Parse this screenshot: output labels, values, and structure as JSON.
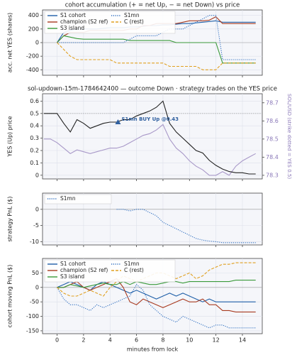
{
  "chart_data": [
    {
      "type": "line",
      "title": "cohort accumulation (+ = net Up, − = net Down) vs price",
      "ylabel": "acc. net YES (shares)",
      "xlim": [
        -1.1,
        15.5
      ],
      "xticks": [
        0,
        2,
        4,
        6,
        8,
        10,
        12,
        14
      ],
      "ylim": [
        -480,
        480
      ],
      "yticks": [
        -400,
        -200,
        0,
        200,
        400
      ],
      "grid": true,
      "legend": "upper left",
      "zero_line": true,
      "x": [
        0,
        0.5,
        1,
        1.5,
        2,
        2.5,
        3,
        3.5,
        4,
        4.5,
        5,
        5.5,
        6,
        6.5,
        7,
        7.5,
        8,
        8.5,
        9,
        9.5,
        10,
        10.5,
        11,
        11.5,
        12,
        12.5,
        13,
        13.5,
        14,
        14.5,
        15
      ],
      "series": [
        {
          "name": "S1 cohort",
          "color": "#1f5fa8",
          "linestyle": "solid",
          "values": [
            0,
            150,
            180,
            200,
            200,
            200,
            200,
            210,
            220,
            220,
            220,
            230,
            230,
            240,
            250,
            250,
            260,
            260,
            270,
            280,
            280,
            290,
            300,
            310,
            320,
            300,
            300,
            300,
            300,
            300,
            300
          ]
        },
        {
          "name": "champion (S2 ref)",
          "color": "#a83a1f",
          "linestyle": "solid",
          "values": [
            0,
            100,
            150,
            150,
            150,
            180,
            180,
            180,
            180,
            180,
            180,
            200,
            200,
            250,
            250,
            280,
            280,
            280,
            280,
            300,
            320,
            320,
            320,
            330,
            380,
            280,
            280,
            280,
            280,
            280,
            280
          ]
        },
        {
          "name": "S3 island",
          "color": "#3a9a3a",
          "linestyle": "solid",
          "values": [
            0,
            100,
            80,
            60,
            50,
            50,
            50,
            50,
            50,
            50,
            50,
            30,
            30,
            30,
            30,
            30,
            30,
            30,
            0,
            0,
            0,
            0,
            0,
            0,
            0,
            -300,
            -300,
            -300,
            -300,
            -300,
            -300
          ]
        },
        {
          "name": "S1mn",
          "color": "#2f6fc0",
          "linestyle": "dotted",
          "values": [
            0,
            0,
            0,
            0,
            0,
            0,
            0,
            0,
            0,
            0,
            0,
            50,
            100,
            100,
            100,
            100,
            150,
            200,
            200,
            200,
            250,
            300,
            350,
            400,
            400,
            -250,
            -250,
            -250,
            -250,
            -250,
            -250
          ]
        },
        {
          "name": "C (rest)",
          "color": "#e0a020",
          "linestyle": "dashed",
          "values": [
            0,
            -100,
            -200,
            -250,
            -250,
            -250,
            -250,
            -250,
            -250,
            -300,
            -300,
            -300,
            -300,
            -300,
            -300,
            -300,
            -300,
            -350,
            -350,
            -350,
            -350,
            -350,
            -400,
            -400,
            -400,
            -300,
            -300,
            -300,
            -300,
            -300,
            -300
          ]
        }
      ]
    },
    {
      "type": "line",
      "title": "sol-updown-15m-1784642400 — outcome Down · strategy trades on the YES price",
      "ylabel": "YES (Up) price",
      "y2label": "SOL/USD (strike dotted = YES 0.5)",
      "xlim": [
        -1.1,
        15.5
      ],
      "xticks": [
        0,
        2,
        4,
        6,
        8,
        10,
        12,
        14
      ],
      "ylim": [
        -0.03,
        0.66
      ],
      "yticks": [
        0.0,
        0.1,
        0.2,
        0.3,
        0.4,
        0.5,
        0.6
      ],
      "y2lim": [
        78.28,
        78.75
      ],
      "y2ticks": [
        78.3,
        78.4,
        78.5,
        78.6,
        78.7
      ],
      "grid": true,
      "strike": 0.5,
      "x": [
        -1,
        -0.5,
        0,
        0.5,
        1,
        1.5,
        2,
        2.5,
        3,
        3.5,
        4,
        4.5,
        5,
        5.5,
        6,
        6.5,
        7,
        7.5,
        8,
        8.5,
        9,
        9.5,
        10,
        10.5,
        11,
        11.5,
        12,
        12.5,
        13,
        13.5,
        14,
        14.5,
        15
      ],
      "series": [
        {
          "name": "SOL/USD",
          "color": "#a898c8",
          "linestyle": "solid",
          "axis": "y2",
          "values": [
            78.5,
            78.5,
            78.48,
            78.45,
            78.42,
            78.44,
            78.43,
            78.42,
            78.43,
            78.44,
            78.45,
            78.45,
            78.46,
            78.48,
            78.5,
            78.52,
            78.53,
            78.55,
            78.58,
            78.5,
            78.45,
            78.42,
            78.38,
            78.35,
            78.33,
            78.3,
            78.3,
            78.32,
            78.3,
            78.35,
            78.38,
            78.4,
            78.42
          ]
        },
        {
          "name": "YES price",
          "color": "#222222",
          "linestyle": "solid",
          "values": [
            0.5,
            0.5,
            0.5,
            0.42,
            0.35,
            0.45,
            0.42,
            0.38,
            0.4,
            0.42,
            0.43,
            0.43,
            0.45,
            0.45,
            0.48,
            0.5,
            0.52,
            0.55,
            0.6,
            0.42,
            0.35,
            0.3,
            0.25,
            0.2,
            0.18,
            0.12,
            0.08,
            0.05,
            0.03,
            0.02,
            0.02,
            0.01,
            0.01
          ]
        }
      ],
      "trades": [
        {
          "x": 4.6,
          "y": 0.43,
          "label": "S1mn BUY Up @0.43",
          "color": "#2f5f9f"
        }
      ]
    },
    {
      "type": "line",
      "ylabel": "strategy PnL ($)",
      "xlim": [
        -1.1,
        15.5
      ],
      "xticks": [
        0,
        2,
        4,
        6,
        8,
        10,
        12,
        14
      ],
      "ylim": [
        -11,
        5
      ],
      "yticks": [
        0,
        -5,
        -10
      ],
      "grid": true,
      "legend": "upper left",
      "zero_line": true,
      "x": [
        4.5,
        5,
        5.5,
        6,
        6.5,
        7,
        7.5,
        8,
        8.5,
        9,
        9.5,
        10,
        10.5,
        11,
        11.5,
        12,
        12.5,
        13,
        13.5,
        14,
        14.5,
        15
      ],
      "series": [
        {
          "name": "S1mn",
          "color": "#2f6fc0",
          "linestyle": "dotted",
          "values": [
            0,
            0,
            -0.5,
            0,
            0,
            -1,
            -2,
            -4,
            -5,
            -6,
            -7,
            -8,
            -9,
            -9.5,
            -9.8,
            -10,
            -10.3,
            -10.3,
            -10.3,
            -10.3,
            -10.3,
            -10.3
          ]
        }
      ]
    },
    {
      "type": "line",
      "ylabel": "cohort moving PnL ($)",
      "xlabel": "minutes from lock",
      "xlim": [
        -1.1,
        15.5
      ],
      "xticks": [
        0,
        2,
        4,
        6,
        8,
        10,
        12,
        14
      ],
      "xtick_labels": true,
      "ylim": [
        -160,
        100
      ],
      "yticks": [
        50,
        0,
        -50,
        -100,
        -150
      ],
      "grid": true,
      "legend": "upper left",
      "zero_line": true,
      "x": [
        0,
        0.5,
        1,
        1.5,
        2,
        2.5,
        3,
        3.5,
        4,
        4.5,
        5,
        5.5,
        6,
        6.5,
        7,
        7.5,
        8,
        8.5,
        9,
        9.5,
        10,
        10.5,
        11,
        11.5,
        12,
        12.5,
        13,
        13.5,
        14,
        14.5,
        15
      ],
      "series": [
        {
          "name": "S1 cohort",
          "color": "#1f5fa8",
          "linestyle": "solid",
          "values": [
            0,
            10,
            20,
            10,
            0,
            -10,
            10,
            20,
            10,
            0,
            -10,
            -20,
            -10,
            -20,
            -30,
            -40,
            -30,
            -20,
            -30,
            -20,
            -30,
            -40,
            -50,
            -40,
            -50,
            -50,
            -50,
            -50,
            -50,
            -50,
            -50
          ]
        },
        {
          "name": "champion (S2 ref)",
          "color": "#a83a1f",
          "linestyle": "solid",
          "values": [
            0,
            0,
            10,
            20,
            0,
            -10,
            0,
            10,
            20,
            30,
            0,
            -50,
            -60,
            -40,
            -50,
            -60,
            -70,
            -60,
            -50,
            -40,
            -50,
            -50,
            -40,
            -60,
            -60,
            -80,
            -80,
            -85,
            -85,
            -85,
            -85
          ]
        },
        {
          "name": "S3 island",
          "color": "#3a9a3a",
          "linestyle": "solid",
          "values": [
            0,
            0,
            10,
            5,
            0,
            5,
            10,
            15,
            10,
            10,
            20,
            10,
            20,
            15,
            10,
            10,
            15,
            20,
            20,
            15,
            20,
            20,
            20,
            20,
            20,
            20,
            20,
            25,
            25,
            25,
            25
          ]
        },
        {
          "name": "S1mn",
          "color": "#2f6fc0",
          "linestyle": "dotted",
          "values": [
            0,
            -40,
            -60,
            -60,
            -70,
            -80,
            -60,
            -70,
            -60,
            -50,
            -40,
            -30,
            10,
            -10,
            -60,
            -80,
            -100,
            -110,
            -120,
            -100,
            -110,
            -120,
            -130,
            -140,
            -130,
            -130,
            -140,
            -140,
            -140,
            -140,
            -140
          ]
        },
        {
          "name": "C (rest)",
          "color": "#e0a020",
          "linestyle": "dashed",
          "values": [
            0,
            -20,
            -30,
            -30,
            -20,
            -10,
            -20,
            -30,
            0,
            20,
            40,
            30,
            20,
            30,
            40,
            50,
            50,
            40,
            30,
            40,
            50,
            30,
            40,
            60,
            70,
            80,
            80,
            85,
            85,
            85,
            85
          ]
        }
      ]
    }
  ]
}
